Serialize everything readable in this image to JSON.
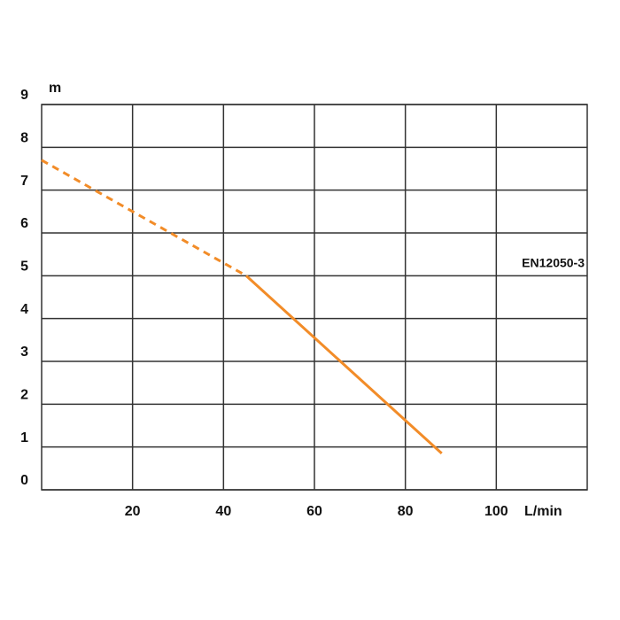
{
  "chart_data": {
    "type": "line",
    "y_label": "m",
    "x_label": "L/min",
    "annotation": "EN12050-3",
    "xlim": [
      0,
      120
    ],
    "xticks": [
      20,
      40,
      60,
      80,
      100
    ],
    "ylim": [
      0,
      9
    ],
    "yticks": [
      0,
      1,
      2,
      3,
      4,
      5,
      6,
      7,
      8,
      9
    ],
    "grid": true,
    "series": [
      {
        "color": "#f28c28",
        "dash": true,
        "x": [
          0,
          45
        ],
        "values": [
          7.7,
          5.0
        ]
      },
      {
        "color": "#f28c28",
        "dash": false,
        "x": [
          45,
          88
        ],
        "values": [
          5.0,
          0.85
        ]
      }
    ]
  }
}
